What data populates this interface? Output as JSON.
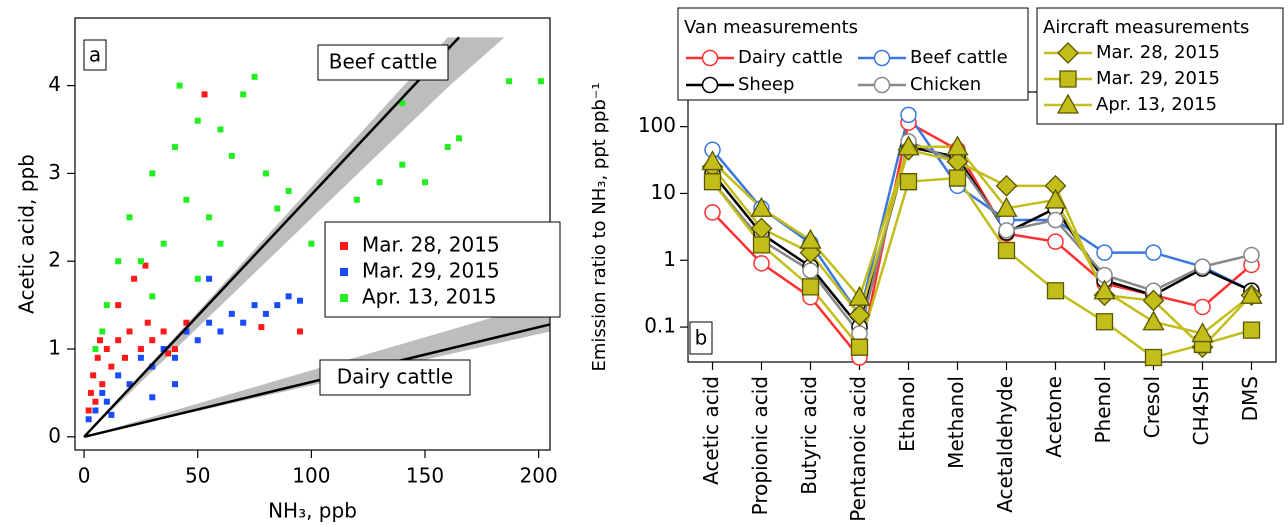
{
  "chart_data": [
    {
      "type": "scatter",
      "panel_label": "a",
      "x_label": "NH₃, ppb",
      "y_label": "Acetic acid, ppb",
      "xlim": [
        -4,
        205
      ],
      "ylim": [
        -0.15,
        4.77
      ],
      "xticks": [
        0,
        50,
        100,
        150,
        200
      ],
      "yticks": [
        0,
        1,
        2,
        3,
        4
      ],
      "series": [
        {
          "name": "Mar. 28, 2015",
          "color": "#ff1a1a",
          "x": [
            2,
            3,
            4,
            5,
            6,
            8,
            10,
            12,
            15,
            18,
            20,
            25,
            28,
            30,
            35,
            40,
            45,
            22,
            27,
            37,
            95,
            78,
            53,
            15,
            7
          ],
          "values": [
            0.3,
            0.5,
            0.7,
            0.4,
            0.9,
            0.6,
            1.0,
            0.8,
            1.1,
            0.9,
            1.2,
            1.0,
            1.3,
            1.1,
            1.2,
            1.0,
            1.3,
            1.8,
            1.95,
            0.95,
            1.2,
            1.25,
            3.9,
            1.5,
            1.1
          ]
        },
        {
          "name": "Mar. 29, 2015",
          "color": "#1a4cff",
          "x": [
            2,
            5,
            8,
            10,
            15,
            20,
            25,
            30,
            35,
            40,
            45,
            50,
            55,
            60,
            65,
            70,
            75,
            80,
            85,
            90,
            95,
            12,
            30,
            55,
            40
          ],
          "values": [
            0.2,
            0.3,
            0.5,
            0.4,
            0.7,
            0.6,
            0.9,
            0.8,
            1.0,
            0.9,
            1.2,
            1.1,
            1.3,
            1.2,
            1.4,
            1.3,
            1.5,
            1.4,
            1.5,
            1.6,
            1.55,
            0.25,
            0.45,
            1.8,
            0.6
          ]
        },
        {
          "name": "Apr. 13, 2015",
          "color": "#22ee22",
          "x": [
            5,
            10,
            15,
            20,
            25,
            30,
            35,
            40,
            45,
            50,
            55,
            60,
            65,
            70,
            75,
            80,
            85,
            90,
            100,
            110,
            120,
            130,
            140,
            150,
            160,
            165,
            187,
            201,
            140,
            8,
            30,
            60,
            50,
            42
          ],
          "values": [
            1.0,
            1.5,
            2.0,
            2.5,
            2.0,
            3.0,
            2.2,
            3.3,
            2.7,
            3.6,
            2.5,
            3.5,
            3.2,
            3.9,
            4.1,
            3.0,
            2.6,
            2.8,
            2.2,
            2.4,
            2.7,
            2.9,
            3.1,
            2.9,
            3.3,
            3.4,
            4.05,
            4.05,
            3.8,
            1.2,
            1.6,
            2.2,
            1.8,
            4.0
          ]
        }
      ],
      "fit_lines": [
        {
          "name": "Beef cattle",
          "x": [
            0,
            165
          ],
          "values": [
            0,
            4.55
          ],
          "band_x": [
            0,
            160,
            185
          ],
          "band_upper": [
            0,
            4.55,
            4.55
          ],
          "band_lower": [
            0,
            3.98,
            4.55
          ]
        },
        {
          "name": "Dairy cattle",
          "x": [
            0,
            205
          ],
          "values": [
            0,
            1.28
          ],
          "band_x": [
            0,
            205
          ],
          "band_upper": [
            0,
            1.55
          ],
          "band_lower": [
            0,
            1.2
          ]
        }
      ]
    },
    {
      "type": "line",
      "panel_label": "b",
      "y_label": "Emission ratio to NH₃, ppt ppb⁻¹",
      "log_y": true,
      "ylim": [
        0.03,
        330
      ],
      "yticks": [
        0.1,
        1,
        10,
        100
      ],
      "legend_titles": [
        "Van measurements",
        "Aircraft measurements"
      ],
      "categories": [
        "Acetic acid",
        "Propionic acid",
        "Butyric acid",
        "Pentanoic acid",
        "Ethanol",
        "Methanol",
        "Acetaldehyde",
        "Acetone",
        "Phenol",
        "Cresol",
        "CH4SH",
        "DMS"
      ],
      "series": [
        {
          "name": "Dairy cattle",
          "color": "#ff3030",
          "marker": "circle",
          "values": [
            5.2,
            0.9,
            0.28,
            0.035,
            115,
            45,
            2.5,
            1.9,
            0.45,
            0.3,
            0.2,
            0.85
          ]
        },
        {
          "name": "Beef cattle",
          "color": "#3a78e0",
          "marker": "circle",
          "values": [
            45,
            6,
            1.8,
            0.15,
            150,
            13,
            4,
            4,
            1.3,
            1.3,
            0.8,
            0.35
          ]
        },
        {
          "name": "Sheep",
          "color": "#000000",
          "marker": "circle",
          "values": [
            20,
            2.5,
            0.8,
            0.1,
            50,
            35,
            2.6,
            6,
            0.5,
            0.3,
            0.75,
            0.35
          ]
        },
        {
          "name": "Chicken",
          "color": "#888888",
          "marker": "circle",
          "values": [
            15,
            2,
            0.7,
            0.08,
            60,
            30,
            2.8,
            4,
            0.6,
            0.35,
            0.8,
            1.2
          ]
        },
        {
          "name": "Mar. 28, 2015",
          "color": "#c3bd1a",
          "marker": "diamond",
          "values": [
            25,
            3,
            1.3,
            0.15,
            45,
            30,
            13,
            13,
            0.3,
            0.25,
            0.05,
            0.3
          ]
        },
        {
          "name": "Mar. 29, 2015",
          "color": "#c3bd1a",
          "marker": "square",
          "values": [
            15,
            1.7,
            0.4,
            0.05,
            15,
            17,
            1.4,
            0.35,
            0.12,
            0.035,
            0.055,
            0.09
          ]
        },
        {
          "name": "Apr. 13, 2015",
          "color": "#c3bd1a",
          "marker": "triangle",
          "values": [
            30,
            6,
            2,
            0.28,
            50,
            50,
            6,
            8,
            0.35,
            0.12,
            0.08,
            0.3
          ]
        }
      ]
    }
  ]
}
